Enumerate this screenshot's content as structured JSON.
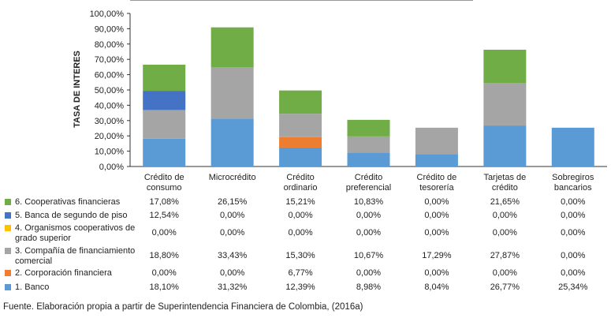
{
  "chart_data": {
    "type": "bar",
    "stacked": true,
    "ylabel": "TASA DE INTERES",
    "ylim": [
      0,
      100
    ],
    "ytick_labels": [
      "0,00%",
      "10,00%",
      "20,00%",
      "30,00%",
      "40,00%",
      "50,00%",
      "60,00%",
      "70,00%",
      "80,00%",
      "90,00%",
      "100,00%"
    ],
    "categories": [
      [
        "Crédito de",
        "consumo"
      ],
      [
        "Microcrédito"
      ],
      [
        "Crédito",
        "ordinario"
      ],
      [
        "Crédito",
        "preferencial"
      ],
      [
        "Crédito de",
        "tesorería"
      ],
      [
        "Tarjetas de",
        "crédito"
      ],
      [
        "Sobregiros",
        "bancarios"
      ]
    ],
    "series": [
      {
        "name": "1. Banco",
        "color": "#5b9bd5",
        "values": [
          18.1,
          31.32,
          12.39,
          8.98,
          8.04,
          26.77,
          25.34
        ],
        "labels": [
          "18,10%",
          "31,32%",
          "12,39%",
          "8,98%",
          "8,04%",
          "26,77%",
          "25,34%"
        ]
      },
      {
        "name": "2. Corporación financiera",
        "color": "#ed7d31",
        "values": [
          0,
          0,
          6.77,
          0,
          0,
          0,
          0
        ],
        "labels": [
          "0,00%",
          "0,00%",
          "6,77%",
          "0,00%",
          "0,00%",
          "0,00%",
          "0,00%"
        ]
      },
      {
        "name": "3. Compañía de financiamiento comercial",
        "name_lines": [
          "3. Compañía de financiamiento",
          "comercial"
        ],
        "color": "#a5a5a5",
        "values": [
          18.8,
          33.43,
          15.3,
          10.67,
          17.29,
          27.87,
          0
        ],
        "labels": [
          "18,80%",
          "33,43%",
          "15,30%",
          "10,67%",
          "17,29%",
          "27,87%",
          "0,00%"
        ]
      },
      {
        "name": "4. Organismos cooperativos de grado superior",
        "name_lines": [
          "4. Organismos cooperativos de",
          "grado superior"
        ],
        "color": "#ffc000",
        "values": [
          0,
          0,
          0,
          0,
          0,
          0,
          0
        ],
        "labels": [
          "0,00%",
          "0,00%",
          "0,00%",
          "0,00%",
          "0,00%",
          "0,00%",
          "0,00%"
        ]
      },
      {
        "name": "5. Banca de segundo de piso",
        "color": "#4472c4",
        "values": [
          12.54,
          0,
          0,
          0,
          0,
          0,
          0
        ],
        "labels": [
          "12,54%",
          "0,00%",
          "0,00%",
          "0,00%",
          "0,00%",
          "0,00%",
          "0,00%"
        ]
      },
      {
        "name": "6. Cooperativas financieras",
        "color": "#70ad47",
        "values": [
          17.08,
          26.15,
          15.21,
          10.83,
          0,
          21.65,
          0
        ],
        "labels": [
          "17,08%",
          "26,15%",
          "15,21%",
          "10,83%",
          "0,00%",
          "21,65%",
          "0,00%"
        ]
      }
    ]
  },
  "source": "Fuente. Elaboración propia a partir de Superintendencia Financiera de Colombia, (2016a)"
}
